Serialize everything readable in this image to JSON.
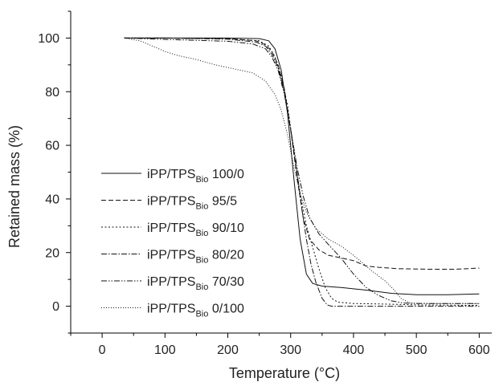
{
  "chart_data": {
    "type": "line",
    "xlabel": "Temperature (°C)",
    "ylabel": "Retained mass (%)",
    "xlim": [
      -50,
      620
    ],
    "ylim": [
      -10,
      110
    ],
    "x_ticks": [
      0,
      100,
      200,
      300,
      400,
      500,
      600
    ],
    "y_ticks": [
      0,
      20,
      40,
      60,
      80,
      100
    ],
    "x_tick_labels": [
      "0",
      "100",
      "200",
      "300",
      "400",
      "500",
      "600"
    ],
    "y_tick_labels": [
      "0",
      "20",
      "40",
      "60",
      "80",
      "100"
    ],
    "grid": false,
    "legend_position": "center-left",
    "series": [
      {
        "name": "iPP/TPSBio 100/0",
        "legend": {
          "prefix": "iPP/TPS",
          "sub": "Bio",
          "suffix": " 100/0"
        },
        "dash": "",
        "points": [
          [
            35,
            100
          ],
          [
            100,
            100
          ],
          [
            200,
            100
          ],
          [
            250,
            99.8
          ],
          [
            265,
            99
          ],
          [
            275,
            96
          ],
          [
            285,
            88
          ],
          [
            295,
            72
          ],
          [
            305,
            48
          ],
          [
            315,
            25
          ],
          [
            325,
            12
          ],
          [
            335,
            8.5
          ],
          [
            350,
            7.5
          ],
          [
            380,
            7
          ],
          [
            420,
            6
          ],
          [
            460,
            4.8
          ],
          [
            500,
            4.3
          ],
          [
            550,
            4.3
          ],
          [
            600,
            4.6
          ]
        ]
      },
      {
        "name": "iPP/TPSBio 95/5",
        "legend": {
          "prefix": "iPP/TPS",
          "sub": "Bio",
          "suffix": " 95/5"
        },
        "dash": "6,3",
        "points": [
          [
            35,
            100
          ],
          [
            100,
            100
          ],
          [
            200,
            99.8
          ],
          [
            245,
            99
          ],
          [
            260,
            97.5
          ],
          [
            270,
            95
          ],
          [
            280,
            90
          ],
          [
            290,
            81
          ],
          [
            300,
            66
          ],
          [
            310,
            48
          ],
          [
            320,
            33
          ],
          [
            330,
            25
          ],
          [
            345,
            21
          ],
          [
            360,
            19
          ],
          [
            380,
            18
          ],
          [
            400,
            17
          ],
          [
            420,
            15
          ],
          [
            440,
            14.5
          ],
          [
            470,
            14
          ],
          [
            520,
            13.8
          ],
          [
            560,
            13.8
          ],
          [
            600,
            14.2
          ]
        ]
      },
      {
        "name": "iPP/TPSBio 90/10",
        "legend": {
          "prefix": "iPP/TPS",
          "sub": "Bio",
          "suffix": " 90/10"
        },
        "dash": "2,2.5",
        "points": [
          [
            35,
            100
          ],
          [
            100,
            100
          ],
          [
            200,
            99.8
          ],
          [
            250,
            99
          ],
          [
            265,
            97
          ],
          [
            275,
            93
          ],
          [
            285,
            86
          ],
          [
            295,
            75
          ],
          [
            305,
            58
          ],
          [
            315,
            42
          ],
          [
            325,
            30
          ],
          [
            335,
            22
          ],
          [
            345,
            14
          ],
          [
            355,
            7
          ],
          [
            365,
            3
          ],
          [
            375,
            1.5
          ],
          [
            400,
            1
          ],
          [
            450,
            0.8
          ],
          [
            500,
            0.5
          ],
          [
            600,
            0.3
          ]
        ]
      },
      {
        "name": "iPP/TPSBio 80/20",
        "legend": {
          "prefix": "iPP/TPS",
          "sub": "Bio",
          "suffix": " 80/20"
        },
        "dash": "7,2,1.5,2",
        "points": [
          [
            35,
            100
          ],
          [
            100,
            100
          ],
          [
            200,
            99.6
          ],
          [
            245,
            98.5
          ],
          [
            260,
            97
          ],
          [
            270,
            94
          ],
          [
            280,
            89
          ],
          [
            290,
            80
          ],
          [
            300,
            66
          ],
          [
            310,
            50
          ],
          [
            318,
            36
          ],
          [
            325,
            25
          ],
          [
            332,
            16
          ],
          [
            340,
            9
          ],
          [
            350,
            3
          ],
          [
            358,
            0.5
          ],
          [
            365,
            0
          ],
          [
            400,
            0
          ],
          [
            500,
            0
          ],
          [
            600,
            0
          ]
        ]
      },
      {
        "name": "iPP/TPSBio 70/30",
        "legend": {
          "prefix": "iPP/TPS",
          "sub": "Bio",
          "suffix": " 70/30"
        },
        "dash": "7,2,1.5,2,1.5,2",
        "points": [
          [
            35,
            100
          ],
          [
            100,
            99.5
          ],
          [
            200,
            98.8
          ],
          [
            240,
            97.8
          ],
          [
            260,
            96
          ],
          [
            270,
            93
          ],
          [
            280,
            88
          ],
          [
            290,
            79
          ],
          [
            300,
            66
          ],
          [
            310,
            52
          ],
          [
            320,
            41
          ],
          [
            330,
            33
          ],
          [
            345,
            27
          ],
          [
            360,
            23
          ],
          [
            380,
            18
          ],
          [
            400,
            12
          ],
          [
            420,
            7
          ],
          [
            440,
            4
          ],
          [
            460,
            2
          ],
          [
            480,
            1.2
          ],
          [
            500,
            1
          ],
          [
            600,
            1
          ]
        ]
      },
      {
        "name": "iPP/TPSBio 0/100",
        "legend": {
          "prefix": "iPP/TPS",
          "sub": "Bio",
          "suffix": " 0/100"
        },
        "dash": "1,2",
        "points": [
          [
            35,
            100
          ],
          [
            60,
            99
          ],
          [
            80,
            97
          ],
          [
            100,
            95
          ],
          [
            120,
            93.5
          ],
          [
            150,
            92
          ],
          [
            180,
            90
          ],
          [
            210,
            88.5
          ],
          [
            240,
            87
          ],
          [
            260,
            84
          ],
          [
            275,
            79
          ],
          [
            285,
            73
          ],
          [
            295,
            64
          ],
          [
            305,
            52
          ],
          [
            315,
            42
          ],
          [
            325,
            35
          ],
          [
            340,
            29
          ],
          [
            360,
            25
          ],
          [
            380,
            22.5
          ],
          [
            400,
            19
          ],
          [
            415,
            16
          ],
          [
            430,
            13
          ],
          [
            450,
            9.5
          ],
          [
            465,
            6
          ],
          [
            475,
            3
          ],
          [
            490,
            1.2
          ],
          [
            520,
            1
          ],
          [
            560,
            1
          ],
          [
            600,
            1
          ]
        ]
      }
    ]
  }
}
